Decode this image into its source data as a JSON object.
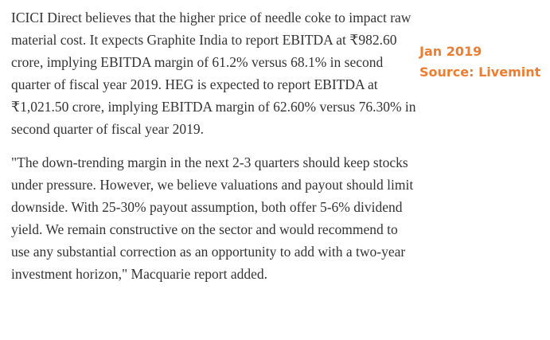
{
  "article": {
    "paragraphs": [
      "ICICI Direct believes that the higher price of needle coke to impact raw material cost. It expects Graphite India to report EBITDA at ₹982.60 crore, implying EBITDA margin of 61.2% versus 68.1% in second quarter of fiscal year 2019. HEG is expected to report EBITDA at ₹1,021.50 crore, implying EBITDA margin of 62.60% versus 76.30% in second quarter of fiscal year 2019.",
      "\"The down-trending margin in the next 2-3 quarters should keep stocks under pressure. However, we believe valuations and payout should limit downside. With 25-30% payout assumption, both offer 5-6% dividend yield. We remain constructive on the sector and would recommend to use any substantial correction as an opportunity to add with a two-year investment horizon,\" Macquarie report added."
    ]
  },
  "annotation": {
    "date": "Jan 2019",
    "source": "Source: Livemint",
    "color": "#ed7d31"
  }
}
